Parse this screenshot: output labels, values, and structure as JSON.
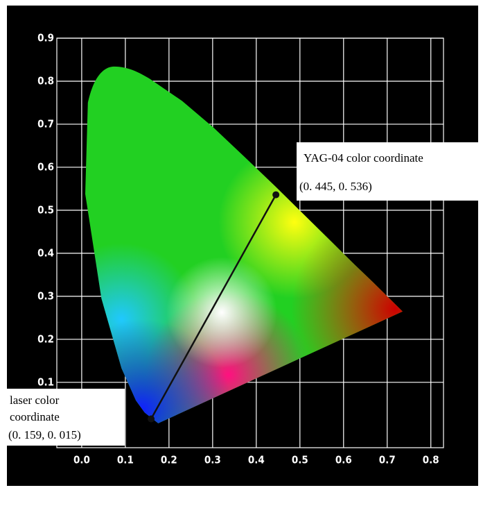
{
  "chart_data": {
    "type": "line",
    "xlim": [
      -0.057,
      0.829
    ],
    "ylim": [
      -0.052,
      0.9
    ],
    "xticks": [
      {
        "value": 0,
        "label": "0.0"
      },
      0.1,
      0.2,
      0.3,
      0.4,
      0.5,
      0.6,
      0.7,
      0.8
    ],
    "yticks": [
      0.1,
      0.2,
      0.3,
      0.4,
      0.5,
      0.6,
      0.7,
      0.8,
      0.9
    ],
    "grid": true,
    "series": [
      {
        "color": "#111111",
        "x": [
          0.159,
          0.445
        ],
        "values": [
          0.015,
          0.536
        ]
      }
    ],
    "annotations": [
      {
        "lines": [
          "YAG-04 color coordinate",
          "(0. 445, 0. 536)"
        ]
      },
      {
        "lines": [
          "laser color",
          "coordinate",
          "(0. 159, 0. 015)"
        ]
      }
    ]
  }
}
